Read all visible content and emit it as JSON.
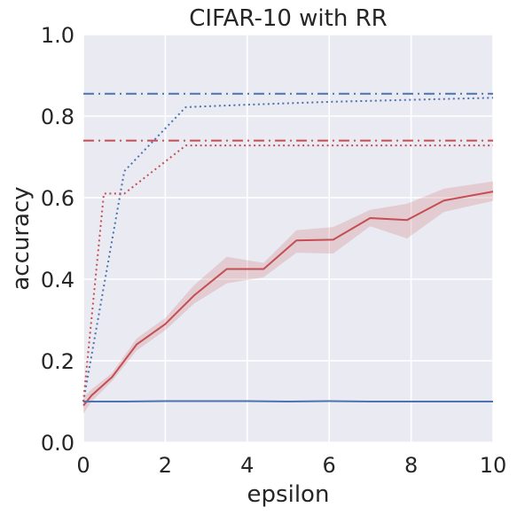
{
  "chart_data": {
    "type": "line",
    "title": "CIFAR-10 with RR",
    "xlabel": "epsilon",
    "ylabel": "accuracy",
    "xlim": [
      0,
      10
    ],
    "ylim": [
      0,
      1
    ],
    "xticks": [
      0,
      2,
      4,
      6,
      8,
      10
    ],
    "xtick_labels": [
      "0",
      "2",
      "4",
      "6",
      "8",
      "10"
    ],
    "yticks": [
      0.0,
      0.2,
      0.4,
      0.6,
      0.8,
      1.0
    ],
    "ytick_labels": [
      "0.0",
      "0.2",
      "0.4",
      "0.6",
      "0.8",
      "1.0"
    ],
    "grid": true,
    "legend": "none",
    "background_color": "#eaeaf2",
    "colors": {
      "blue": "#4c72b0",
      "red": "#c44e52"
    },
    "series": [
      {
        "color": "#4c72b0",
        "linestyle": "dashdot",
        "x": [
          0,
          10
        ],
        "y": [
          0.855,
          0.855
        ]
      },
      {
        "color": "#c44e52",
        "linestyle": "dashdot",
        "x": [
          0,
          10
        ],
        "y": [
          0.74,
          0.74
        ]
      },
      {
        "color": "#4c72b0",
        "linestyle": "dotted",
        "x": [
          0,
          1.0,
          2.5,
          4,
          6,
          8,
          10
        ],
        "y": [
          0.1,
          0.665,
          0.822,
          0.828,
          0.835,
          0.84,
          0.845
        ]
      },
      {
        "color": "#c44e52",
        "linestyle": "dotted",
        "x": [
          0,
          0.5,
          1.0,
          2.5,
          4,
          6,
          8,
          10
        ],
        "y": [
          0.1,
          0.61,
          0.61,
          0.728,
          0.728,
          0.728,
          0.728,
          0.728
        ]
      },
      {
        "color": "#c44e52",
        "linestyle": "solid",
        "x": [
          0,
          0.2,
          0.7,
          1.3,
          2.0,
          2.7,
          3.5,
          4.4,
          5.2,
          6.1,
          7.0,
          7.9,
          8.8,
          10.0
        ],
        "y": [
          0.09,
          0.115,
          0.16,
          0.24,
          0.29,
          0.36,
          0.425,
          0.425,
          0.495,
          0.497,
          0.55,
          0.545,
          0.593,
          0.615
        ],
        "band_lower": [
          0.07,
          0.1,
          0.15,
          0.225,
          0.275,
          0.34,
          0.39,
          0.405,
          0.465,
          0.463,
          0.53,
          0.5,
          0.565,
          0.592
        ],
        "band_upper": [
          0.11,
          0.13,
          0.17,
          0.255,
          0.305,
          0.385,
          0.455,
          0.44,
          0.52,
          0.528,
          0.57,
          0.585,
          0.622,
          0.64
        ]
      },
      {
        "color": "#4c72b0",
        "linestyle": "solid",
        "x": [
          0,
          1,
          2,
          3,
          4,
          5,
          6,
          7,
          8,
          9,
          10
        ],
        "y": [
          0.1,
          0.1,
          0.101,
          0.101,
          0.101,
          0.1,
          0.101,
          0.1,
          0.1,
          0.1,
          0.1
        ]
      }
    ]
  }
}
